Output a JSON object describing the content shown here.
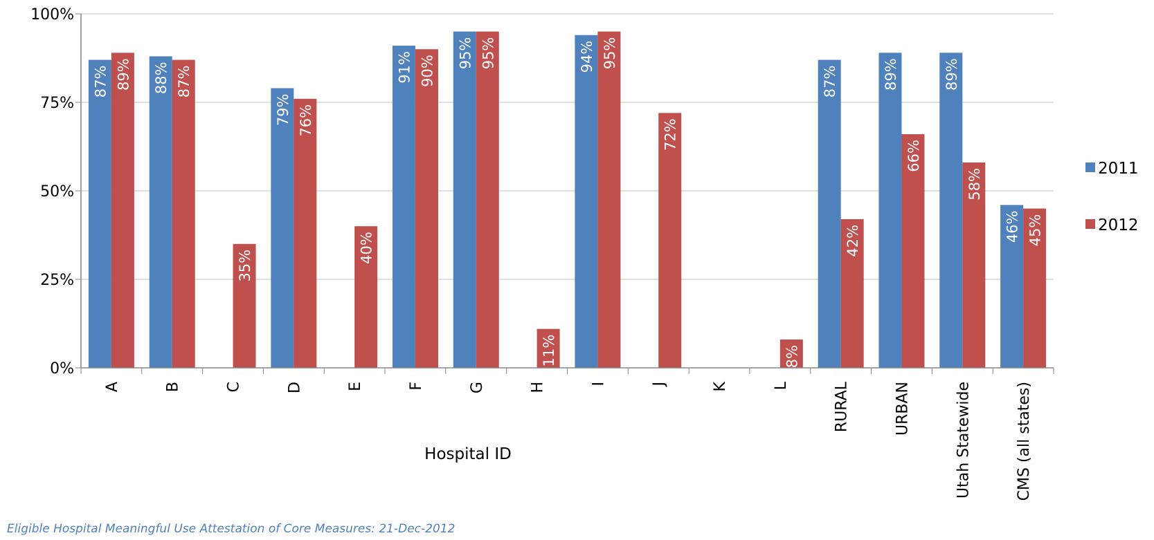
{
  "chart_data": {
    "type": "bar",
    "title": "",
    "xlabel": "Hospital ID",
    "ylabel": "",
    "ylim": [
      0,
      100
    ],
    "yticks": [
      "0%",
      "25%",
      "50%",
      "75%",
      "100%"
    ],
    "ytick_values": [
      0,
      25,
      50,
      75,
      100
    ],
    "grid": true,
    "legend_position": "right",
    "categories": [
      "A",
      "B",
      "C",
      "D",
      "E",
      "F",
      "G",
      "H",
      "I",
      "J",
      "K",
      "L",
      "RURAL",
      "URBAN",
      "Utah Statewide",
      "CMS (all states)"
    ],
    "series": [
      {
        "name": "2011",
        "color": "#4f81bd",
        "values": [
          87,
          88,
          null,
          79,
          null,
          91,
          95,
          null,
          94,
          null,
          null,
          null,
          87,
          89,
          89,
          46
        ],
        "data_labels": [
          "87%",
          "88%",
          "",
          "79%",
          "",
          "91%",
          "95%",
          "",
          "94%",
          "",
          "",
          "",
          "87%",
          "89%",
          "89%",
          "46%"
        ]
      },
      {
        "name": "2012",
        "color": "#c0504d",
        "values": [
          89,
          87,
          35,
          76,
          40,
          90,
          95,
          11,
          95,
          72,
          null,
          8,
          42,
          66,
          58,
          45
        ],
        "data_labels": [
          "89%",
          "87%",
          "35%",
          "76%",
          "40%",
          "90%",
          "95%",
          "11%",
          "95%",
          "72%",
          "",
          "8%",
          "42%",
          "66%",
          "58%",
          "45%"
        ]
      }
    ]
  },
  "footnote": "Eligible Hospital Meaningful Use Attestation of Core Measures: 21-Dec-2012"
}
